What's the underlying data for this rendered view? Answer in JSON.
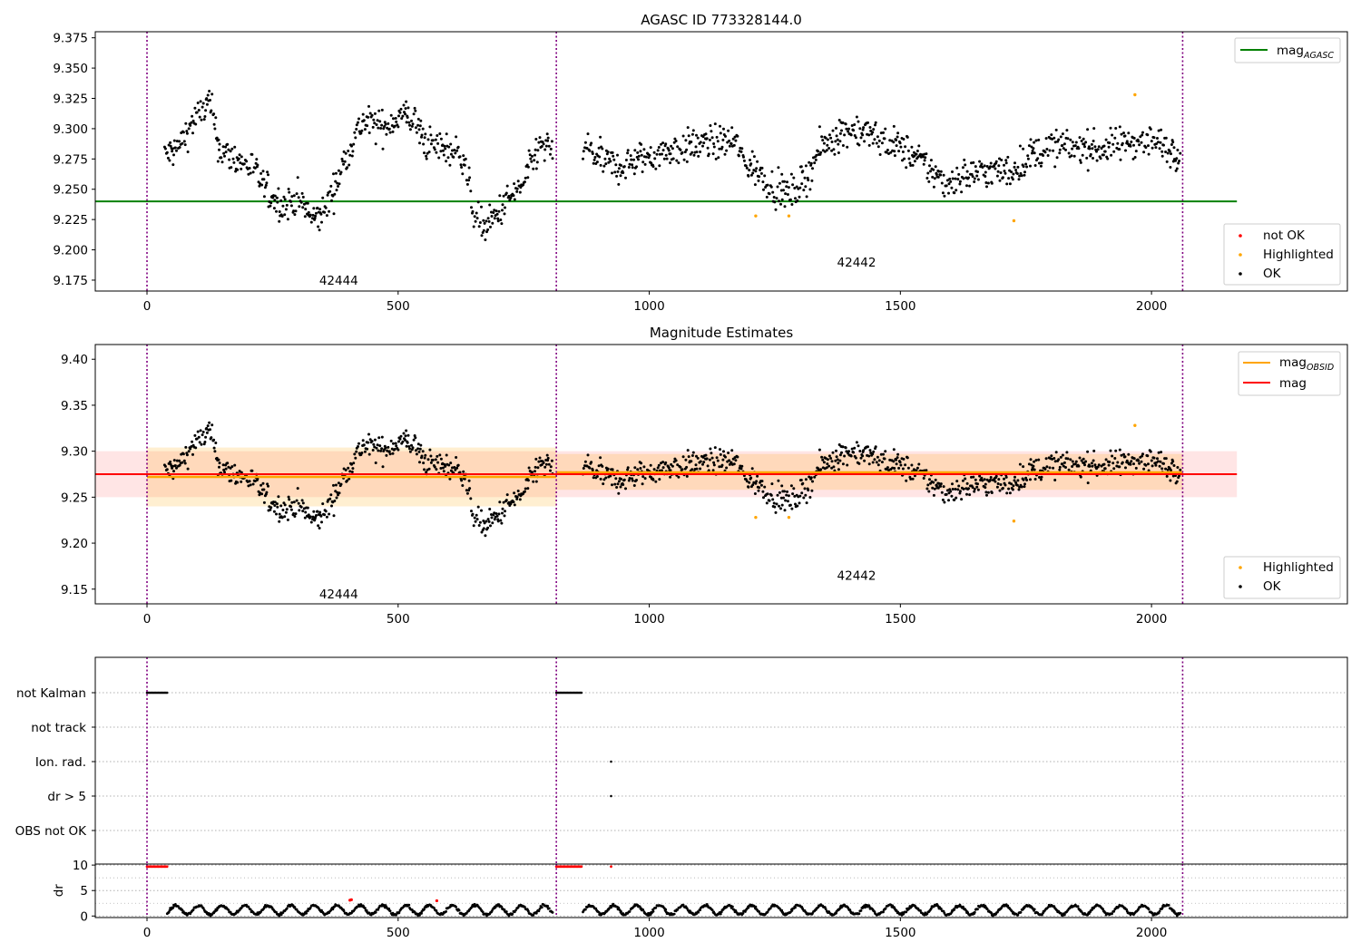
{
  "chart_data": [
    {
      "type": "scatter",
      "title": "AGASC ID 773328144.0",
      "xlabel": "",
      "ylabel": "",
      "xlim": [
        -103,
        2390
      ],
      "ylim": [
        9.166,
        9.38
      ],
      "xticks": [
        0,
        500,
        1000,
        1500,
        2000
      ],
      "yticks": [
        9.175,
        9.2,
        9.225,
        9.25,
        9.275,
        9.3,
        9.325,
        9.35,
        9.375
      ],
      "ytick_labels": [
        "9.175",
        "9.200",
        "9.225",
        "9.250",
        "9.275",
        "9.300",
        "9.325",
        "9.350",
        "9.375"
      ],
      "vlines": [
        0,
        815,
        2062
      ],
      "obsid_labels": [
        {
          "text": "42444",
          "x": 407,
          "y": 9.175
        },
        {
          "text": "42442",
          "x": 1438,
          "y": 9.19
        }
      ],
      "reference_lines": [
        {
          "name": "mag_AGASC",
          "y": 9.24,
          "xrange": [
            -103,
            2170
          ],
          "color": "#008000"
        }
      ],
      "series_legend": [
        "not OK",
        "Highlighted",
        "OK"
      ],
      "highlighted_points": {
        "x": [
          1212,
          1278,
          1726,
          1967
        ],
        "y": [
          9.228,
          9.228,
          9.224,
          9.328
        ]
      },
      "legend_positions": [
        "top-right",
        "bottom-right"
      ]
    },
    {
      "type": "scatter",
      "title": "Magnitude Estimates",
      "xlabel": "",
      "ylabel": "",
      "xlim": [
        -103,
        2390
      ],
      "ylim": [
        9.134,
        9.416
      ],
      "xticks": [
        0,
        500,
        1000,
        1500,
        2000
      ],
      "yticks": [
        9.15,
        9.2,
        9.25,
        9.3,
        9.35,
        9.4
      ],
      "ytick_labels": [
        "9.15",
        "9.20",
        "9.25",
        "9.30",
        "9.35",
        "9.40"
      ],
      "vlines": [
        0,
        815,
        2062
      ],
      "obsid_labels": [
        {
          "text": "42444",
          "x": 407,
          "y": 9.145
        },
        {
          "text": "42442",
          "x": 1438,
          "y": 9.165
        }
      ],
      "mag": {
        "value": 9.275,
        "band": [
          9.25,
          9.3
        ],
        "xrange": [
          -103,
          2170
        ],
        "color": "#ff0000"
      },
      "mag_obsid": [
        {
          "xrange": [
            0,
            815
          ],
          "value": 9.272,
          "band": [
            9.24,
            9.304
          ]
        },
        {
          "xrange": [
            815,
            2062
          ],
          "value": 9.277,
          "band": [
            9.258,
            9.297
          ]
        }
      ],
      "series_legend": [
        "Highlighted",
        "OK"
      ],
      "highlighted_points": {
        "x": [
          1212,
          1278,
          1726,
          1967
        ],
        "y": [
          9.228,
          9.228,
          9.224,
          9.328
        ]
      },
      "legend_positions": [
        "top-right",
        "bottom-right"
      ]
    },
    {
      "type": "scatter",
      "title": "",
      "categories": [
        "not Kalman",
        "not track",
        "Ion. rad.",
        "dr > 5",
        "OBS not OK"
      ],
      "flag_points": [
        {
          "flag": "not Kalman",
          "ranges": [
            [
              0,
              40
            ],
            [
              815,
              866
            ]
          ]
        },
        {
          "flag": "Ion. rad.",
          "x": [
            924
          ]
        },
        {
          "flag": "dr > 5",
          "x": [
            924
          ]
        }
      ],
      "xlim": [
        -103,
        2390
      ],
      "xticks": [
        0,
        500,
        1000,
        1500,
        2000
      ],
      "vlines": [
        0,
        815,
        2062
      ]
    },
    {
      "type": "scatter",
      "title": "",
      "ylabel": "dr",
      "ylim": [
        -0.3,
        10.2
      ],
      "yticks": [
        0,
        5,
        10
      ],
      "xlim": [
        -103,
        2390
      ],
      "xticks": [
        0,
        500,
        1000,
        1500,
        2000
      ],
      "vlines": [
        0,
        815,
        2062
      ],
      "saturated": {
        "y": 9.7,
        "ranges": [
          [
            0,
            40
          ],
          [
            815,
            866
          ]
        ],
        "x": [
          924
        ]
      },
      "red_points": {
        "x": [
          404,
          407,
          577
        ],
        "y": [
          3.1,
          3.2,
          3.0
        ]
      },
      "gaps": [
        [
          0,
          40
        ],
        [
          815,
          866
        ]
      ]
    }
  ],
  "legend": {
    "mag_agasc": "mag",
    "mag_agasc_sub": "AGASC",
    "not_ok": "not OK",
    "highlighted": "Highlighted",
    "ok": "OK",
    "mag_obsid": "mag",
    "mag_obsid_sub": "OBSID",
    "mag": "mag"
  },
  "colors": {
    "ok": "#000000",
    "not_ok": "#ff0000",
    "highlighted": "#ffa500",
    "agasc_line": "#008000",
    "mag_line": "#ff0000",
    "obsid_line": "#ffa500",
    "vline": "#800080",
    "grid": "#b0b0b0"
  }
}
